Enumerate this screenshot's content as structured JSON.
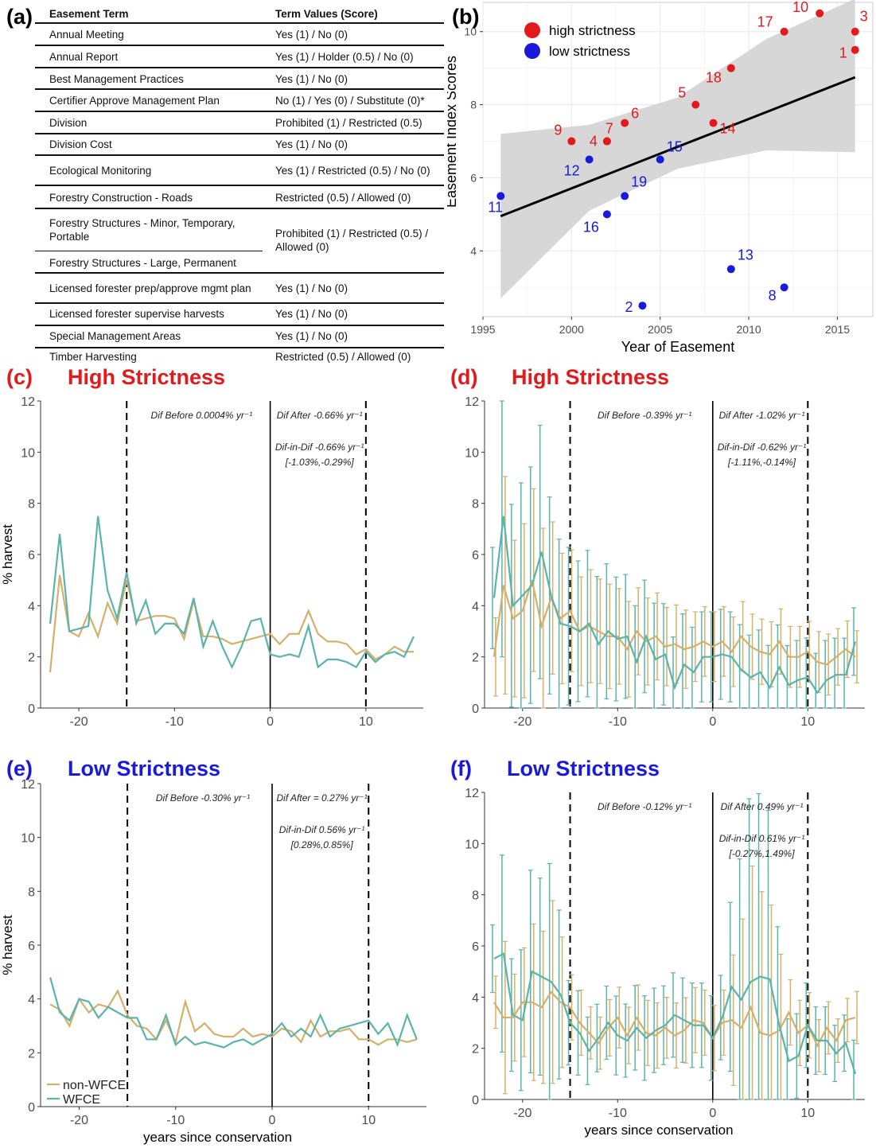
{
  "panel_labels": {
    "a": "(a)",
    "b": "(b)",
    "c": "(c)",
    "d": "(d)",
    "e": "(e)",
    "f": "(f)"
  },
  "colors": {
    "high": "#e31a1c",
    "low": "#1a1adc",
    "non_wfce": "#d4b06a",
    "wfce": "#5ab4ac",
    "ci_band": "#d3d3d3",
    "grid": "#ebebeb"
  },
  "table": {
    "headers": {
      "term": "Easement Term",
      "value": "Term Values (Score)"
    },
    "rows": [
      {
        "term": "Annual Meeting",
        "value": "Yes (1) / No (0)"
      },
      {
        "term": "Annual Report",
        "value": "Yes (1) / Holder (0.5) / No (0)"
      },
      {
        "term": "Best Management Practices",
        "value": "Yes (1) / No (0)"
      },
      {
        "term": "Certifier Approve Management Plan",
        "value": "No (1) / Yes (0) / Substitute (0)*"
      },
      {
        "term": "Division",
        "value": "Prohibited (1) / Restricted (0.5)"
      },
      {
        "term": "Division Cost",
        "value": "Yes (1) / No (0)"
      },
      {
        "term": "Ecological Monitoring",
        "value": "Yes (1) / Restricted (0.5) / No (0)"
      },
      {
        "term": "Forestry Construction - Roads",
        "value": "Restricted (0.5) / Allowed (0)"
      },
      {
        "term": "Forestry Structures - Minor, Temporary, Portable",
        "value": "Prohibited (1) / Restricted (0.5) / Allowed (0)"
      },
      {
        "term": "Forestry Structures - Large, Permanent",
        "value": ""
      },
      {
        "term": "Licensed forester prep/approve mgmt plan",
        "value": "Yes (1) / No (0)"
      },
      {
        "term": "Licensed forester supervise harvests",
        "value": "Yes (1) / No (0)"
      },
      {
        "term": "Special Management Areas",
        "value": "Yes (1) / No (0)"
      },
      {
        "term": "Timber Harvesting",
        "value": "Restricted (0.5) / Allowed (0)"
      }
    ]
  },
  "chart_data": [
    {
      "panel": "b",
      "type": "scatter",
      "xlabel": "Year of Easement",
      "ylabel": "Easement Index Scores",
      "xlim": [
        1995,
        2017
      ],
      "ylim": [
        2.2,
        10.8
      ],
      "xticks": [
        "1995",
        "2000",
        "2005",
        "2010",
        "2015"
      ],
      "yticks": [
        "4",
        "6",
        "8",
        "10"
      ],
      "grid": true,
      "legend": {
        "position": "top-left",
        "entries": [
          {
            "label": "high strictness",
            "group": "high"
          },
          {
            "label": "low strictness",
            "group": "low"
          }
        ]
      },
      "trend_line": {
        "x": [
          1996,
          2016
        ],
        "y": [
          4.95,
          8.75
        ]
      },
      "ci_band": {
        "x": [
          1996,
          2001,
          2006,
          2011,
          2016
        ],
        "lower": [
          2.7,
          5.1,
          6.25,
          6.75,
          6.7
        ],
        "upper": [
          7.2,
          7.45,
          8.2,
          9.8,
          10.9
        ]
      },
      "points": [
        {
          "id": "1",
          "x": 2016,
          "y": 9.5,
          "group": "high"
        },
        {
          "id": "3",
          "x": 2016,
          "y": 10.0,
          "group": "high"
        },
        {
          "id": "4",
          "x": 2002,
          "y": 7.0,
          "group": "high"
        },
        {
          "id": "5",
          "x": 2007,
          "y": 8.0,
          "group": "high"
        },
        {
          "id": "6",
          "x": 2003,
          "y": 7.5,
          "group": "high"
        },
        {
          "id": "7",
          "x": 2002,
          "y": 7.0,
          "group": "high"
        },
        {
          "id": "9",
          "x": 2000,
          "y": 7.0,
          "group": "high"
        },
        {
          "id": "10",
          "x": 2014,
          "y": 10.5,
          "group": "high"
        },
        {
          "id": "14",
          "x": 2008,
          "y": 7.5,
          "group": "high"
        },
        {
          "id": "17",
          "x": 2012,
          "y": 10.0,
          "group": "high"
        },
        {
          "id": "18",
          "x": 2009,
          "y": 9.0,
          "group": "high"
        },
        {
          "id": "2",
          "x": 2004,
          "y": 2.5,
          "group": "low"
        },
        {
          "id": "8",
          "x": 2012,
          "y": 3.0,
          "group": "low"
        },
        {
          "id": "11",
          "x": 1996,
          "y": 5.5,
          "group": "low"
        },
        {
          "id": "12",
          "x": 2001,
          "y": 6.5,
          "group": "low"
        },
        {
          "id": "13",
          "x": 2009,
          "y": 3.5,
          "group": "low"
        },
        {
          "id": "15",
          "x": 2005,
          "y": 6.5,
          "group": "low"
        },
        {
          "id": "16",
          "x": 2002,
          "y": 5.0,
          "group": "low"
        },
        {
          "id": "19",
          "x": 2003,
          "y": 5.5,
          "group": "low"
        }
      ]
    },
    {
      "panel": "c",
      "title": "High Strictness",
      "title_group": "high",
      "type": "line",
      "ylabel": "% harvest",
      "xlabel": "",
      "xlim": [
        -24,
        16
      ],
      "ylim": [
        0,
        12
      ],
      "xticks": [
        "-20",
        "-10",
        "0",
        "10"
      ],
      "yticks": [
        "0",
        "2",
        "4",
        "6",
        "8",
        "10",
        "12"
      ],
      "grid": false,
      "legend": null,
      "annotations": {
        "before": "Dif Before 0.0004% yr⁻¹",
        "after": "Dif After -0.66% yr⁻¹",
        "did": "Dif-in-Dif -0.66% yr⁻¹",
        "ci": "[-1.03%,-0.29%]"
      },
      "x": [
        -23,
        -22,
        -21,
        -20,
        -19,
        -18,
        -17,
        -16,
        -15,
        -14,
        -13,
        -12,
        -11,
        -10,
        -9,
        -8,
        -7,
        -6,
        -5,
        -4,
        -3,
        -2,
        -1,
        0,
        1,
        2,
        3,
        4,
        5,
        6,
        7,
        8,
        9,
        10,
        11,
        12,
        13,
        14,
        15
      ],
      "series": [
        {
          "name": "non-WFCE",
          "values": [
            1.4,
            5.2,
            3.0,
            2.8,
            3.7,
            2.8,
            4.1,
            3.3,
            5.0,
            3.4,
            3.5,
            3.6,
            3.6,
            3.5,
            2.7,
            4.2,
            2.8,
            2.8,
            2.7,
            2.5,
            2.6,
            2.7,
            2.8,
            2.9,
            2.5,
            2.9,
            2.9,
            3.8,
            2.9,
            2.6,
            2.6,
            2.5,
            2.1,
            2.3,
            1.9,
            2.1,
            2.4,
            2.2,
            2.2
          ]
        },
        {
          "name": "WFCE",
          "values": [
            3.3,
            6.8,
            3.0,
            3.1,
            3.2,
            7.5,
            4.6,
            3.5,
            5.3,
            3.3,
            4.2,
            2.9,
            3.3,
            3.3,
            2.9,
            4.3,
            2.4,
            3.4,
            2.4,
            1.6,
            2.4,
            3.4,
            3.5,
            2.1,
            2.0,
            2.1,
            2.0,
            3.2,
            1.6,
            1.9,
            1.9,
            1.8,
            1.6,
            2.2,
            1.8,
            2.1,
            2.2,
            2.0,
            2.8
          ]
        }
      ]
    },
    {
      "panel": "d",
      "title": "High Strictness",
      "title_group": "high",
      "type": "line",
      "ylabel": "",
      "xlabel": "",
      "xlim": [
        -24,
        16
      ],
      "ylim": [
        0,
        12
      ],
      "xticks": [
        "-20",
        "-10",
        "0",
        "10"
      ],
      "yticks": [
        "0",
        "2",
        "4",
        "6",
        "8",
        "10",
        "12"
      ],
      "grid": false,
      "legend": null,
      "error_bars": true,
      "annotations": {
        "before": "Dif Before -0.39% yr⁻¹",
        "after": "Dif After -1.02% yr⁻¹",
        "did": "Dif-in-Dif -0.62% yr⁻¹",
        "ci": "[-1.11%,-0.14%]"
      },
      "x": [
        -23,
        -22,
        -21,
        -20,
        -19,
        -18,
        -17,
        -16,
        -15,
        -14,
        -13,
        -12,
        -11,
        -10,
        -9,
        -8,
        -7,
        -6,
        -5,
        -4,
        -3,
        -2,
        -1,
        0,
        1,
        2,
        3,
        4,
        5,
        6,
        7,
        8,
        9,
        10,
        11,
        12,
        13,
        14,
        15
      ],
      "series": [
        {
          "name": "non-WFCE",
          "values": [
            2.0,
            4.8,
            3.5,
            3.8,
            5.0,
            3.2,
            4.3,
            3.5,
            3.8,
            3.0,
            3.2,
            3.0,
            2.8,
            2.8,
            2.3,
            3.0,
            2.6,
            2.8,
            2.4,
            2.5,
            2.3,
            2.4,
            2.6,
            2.4,
            2.6,
            2.2,
            2.8,
            2.4,
            2.2,
            2.1,
            2.6,
            2.0,
            2.0,
            2.2,
            1.8,
            1.7,
            2.0,
            2.3,
            2.0
          ]
        },
        {
          "name": "WFCE",
          "values": [
            4.3,
            7.5,
            4.0,
            4.4,
            4.8,
            6.1,
            4.4,
            3.3,
            3.2,
            3.0,
            3.3,
            2.5,
            3.0,
            2.7,
            2.8,
            1.8,
            2.8,
            1.9,
            2.1,
            0.8,
            1.7,
            1.4,
            2.0,
            2.0,
            2.1,
            2.0,
            1.5,
            1.2,
            1.4,
            0.8,
            1.6,
            0.9,
            1.1,
            1.2,
            0.6,
            1.1,
            1.3,
            1.3,
            2.6
          ]
        }
      ],
      "error_halfwidth": [
        1.8,
        5.0,
        3.6,
        4.0,
        4.2,
        4.5,
        3.5,
        3.0,
        2.8,
        2.5,
        2.6,
        2.4,
        2.4,
        2.2,
        2.2,
        2.0,
        2.0,
        2.0,
        1.8,
        1.8,
        1.8,
        1.6,
        1.6,
        1.6,
        1.6,
        1.6,
        1.6,
        1.5,
        1.5,
        1.5,
        1.5,
        1.4,
        1.4,
        1.4,
        1.4,
        1.4,
        1.3,
        1.3,
        1.2
      ]
    },
    {
      "panel": "e",
      "title": "Low Strictness",
      "title_group": "low",
      "type": "line",
      "ylabel": "% harvest",
      "xlabel": "years since conservation",
      "xlim": [
        -24,
        16
      ],
      "ylim": [
        0,
        12
      ],
      "xticks": [
        "-20",
        "-10",
        "0",
        "10"
      ],
      "yticks": [
        "0",
        "2",
        "4",
        "6",
        "8",
        "10",
        "12"
      ],
      "grid": false,
      "legend": {
        "position": "bottom-left",
        "entries": [
          "non-WFCE",
          "WFCE"
        ]
      },
      "annotations": {
        "before": "Dif Before -0.30% yr⁻¹",
        "after": "Dif After = 0.27% yr⁻¹",
        "did": "Dif-in-Dif 0.56% yr⁻¹",
        "ci": "[0.28%,0.85%]"
      },
      "x": [
        -23,
        -22,
        -21,
        -20,
        -19,
        -18,
        -17,
        -16,
        -15,
        -14,
        -13,
        -12,
        -11,
        -10,
        -9,
        -8,
        -7,
        -6,
        -5,
        -4,
        -3,
        -2,
        -1,
        0,
        1,
        2,
        3,
        4,
        5,
        6,
        7,
        8,
        9,
        10,
        11,
        12,
        13,
        14,
        15
      ],
      "series": [
        {
          "name": "non-WFCE",
          "values": [
            3.8,
            3.6,
            3.0,
            4.0,
            3.5,
            3.8,
            3.7,
            4.3,
            3.4,
            3.0,
            2.9,
            2.5,
            3.2,
            2.4,
            3.9,
            2.8,
            3.1,
            2.7,
            2.6,
            2.6,
            2.9,
            2.6,
            2.7,
            2.6,
            2.9,
            2.8,
            2.4,
            3.2,
            2.6,
            2.8,
            2.8,
            2.9,
            2.5,
            2.5,
            2.3,
            2.5,
            2.5,
            2.4,
            2.5
          ]
        },
        {
          "name": "WFCE",
          "values": [
            4.8,
            3.5,
            3.2,
            4.0,
            3.9,
            3.3,
            3.7,
            3.5,
            3.3,
            3.3,
            2.5,
            2.5,
            3.4,
            2.3,
            2.6,
            2.3,
            2.4,
            2.3,
            2.2,
            2.4,
            2.5,
            2.3,
            2.5,
            2.7,
            3.1,
            2.6,
            2.9,
            2.6,
            3.4,
            2.6,
            2.9,
            3.0,
            3.1,
            3.2,
            2.7,
            3.1,
            2.3,
            3.4,
            2.5
          ]
        }
      ]
    },
    {
      "panel": "f",
      "title": "Low Strictness",
      "title_group": "low",
      "type": "line",
      "ylabel": "",
      "xlabel": "years since conservation",
      "xlim": [
        -24,
        16
      ],
      "ylim": [
        0,
        12
      ],
      "xticks": [
        "-20",
        "-10",
        "0",
        "10"
      ],
      "yticks": [
        "0",
        "2",
        "4",
        "6",
        "8",
        "10",
        "12"
      ],
      "grid": false,
      "legend": null,
      "error_bars": true,
      "annotations": {
        "before": "Dif Before -0.12% yr⁻¹",
        "after": "Dif After 0.49% yr⁻¹",
        "did": "Dif-in-Dif 0.61% yr⁻¹",
        "ci": "[-0.27%,1.49%]"
      },
      "x": [
        -23,
        -22,
        -21,
        -20,
        -19,
        -18,
        -17,
        -16,
        -15,
        -14,
        -13,
        -12,
        -11,
        -10,
        -9,
        -8,
        -7,
        -6,
        -5,
        -4,
        -3,
        -2,
        -1,
        0,
        1,
        2,
        3,
        4,
        5,
        6,
        7,
        8,
        9,
        10,
        11,
        12,
        13,
        14,
        15
      ],
      "series": [
        {
          "name": "non-WFCE",
          "values": [
            3.8,
            3.2,
            3.2,
            3.8,
            3.8,
            3.6,
            4.2,
            3.8,
            3.6,
            3.0,
            2.6,
            2.2,
            2.8,
            3.2,
            2.5,
            3.2,
            2.6,
            2.5,
            2.8,
            2.5,
            2.7,
            3.1,
            3.0,
            2.4,
            3.0,
            3.1,
            2.8,
            3.6,
            2.6,
            2.5,
            2.7,
            3.4,
            2.6,
            2.9,
            2.1,
            2.8,
            2.3,
            3.1,
            3.2
          ]
        },
        {
          "name": "WFCE",
          "values": [
            5.5,
            5.7,
            3.3,
            3.1,
            5.0,
            4.8,
            4.6,
            4.1,
            3.0,
            2.6,
            1.9,
            2.4,
            3.0,
            2.5,
            2.3,
            2.8,
            2.4,
            2.7,
            2.9,
            3.3,
            3.1,
            2.9,
            2.9,
            2.4,
            3.2,
            4.4,
            3.9,
            4.6,
            4.8,
            4.7,
            2.9,
            1.5,
            1.7,
            2.9,
            2.3,
            2.3,
            1.8,
            2.2,
            1.0
          ]
        }
      ],
      "error_halfwidth": [
        1.2,
        3.5,
        2.0,
        2.5,
        3.6,
        3.5,
        4.2,
        3.0,
        1.5,
        1.5,
        1.2,
        1.2,
        1.3,
        1.4,
        1.3,
        1.5,
        1.5,
        1.5,
        1.4,
        1.5,
        1.5,
        1.5,
        1.5,
        1.5,
        1.5,
        3.0,
        5.0,
        6.5,
        6.5,
        6.0,
        3.5,
        1.5,
        1.5,
        1.5,
        1.2,
        1.2,
        1.0,
        1.0,
        1.2
      ]
    }
  ]
}
